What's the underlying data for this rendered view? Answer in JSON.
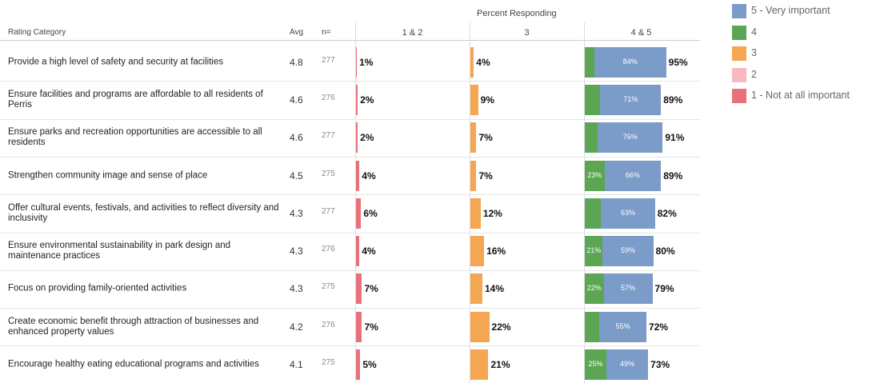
{
  "chart_data": {
    "type": "survey-table",
    "title": "Percent Responding",
    "columns": [
      "Rating Category",
      "Avg",
      "n="
    ],
    "categories": [
      "Provide a high level of safety and security at facilities",
      "Ensure facilities and programs are affordable to all residents of Perris",
      "Ensure parks and recreation opportunities are accessible to all residents",
      "Strengthen community image and sense of place",
      "Offer cultural events, festivals, and activities to reflect diversity and inclusivity",
      "Ensure environmental sustainability in park design and maintenance practices",
      "Focus on providing family-oriented activities",
      "Create economic benefit through attraction of businesses and enhanced property values",
      "Encourage healthy eating educational programs and activities"
    ],
    "avg": [
      4.8,
      4.6,
      4.6,
      4.5,
      4.3,
      4.3,
      4.3,
      4.2,
      4.1
    ],
    "n": [
      277,
      276,
      277,
      275,
      277,
      276,
      275,
      276,
      275
    ],
    "panels": [
      {
        "name": "1 & 2",
        "color": "#e8717b",
        "values": [
          1,
          2,
          2,
          4,
          6,
          4,
          7,
          7,
          5
        ],
        "value_labels": [
          "1%",
          "2%",
          "2%",
          "4%",
          "6%",
          "4%",
          "7%",
          "7%",
          "5%"
        ]
      },
      {
        "name": "3",
        "color": "#f4a652",
        "values": [
          4,
          9,
          7,
          7,
          12,
          16,
          14,
          22,
          21
        ],
        "value_labels": [
          "4%",
          "9%",
          "7%",
          "7%",
          "12%",
          "16%",
          "14%",
          "22%",
          "21%"
        ]
      },
      {
        "name": "4 & 5",
        "values": [
          95,
          89,
          91,
          89,
          82,
          80,
          79,
          72,
          73
        ],
        "value_labels": [
          "95%",
          "89%",
          "91%",
          "89%",
          "82%",
          "80%",
          "79%",
          "72%",
          "73%"
        ],
        "segments": [
          {
            "color": "#5ba553",
            "values": [
              11,
              18,
              15,
              23,
              19,
              21,
              22,
              17,
              25
            ],
            "value_labels": [
              null,
              null,
              null,
              "23%",
              null,
              "21%",
              "22%",
              null,
              "25%"
            ]
          },
          {
            "color": "#7b9bc8",
            "values": [
              84,
              71,
              76,
              66,
              63,
              59,
              57,
              55,
              49
            ],
            "value_labels": [
              "84%",
              "71%",
              "76%",
              "66%",
              "63%",
              "59%",
              "57%",
              "55%",
              "49%"
            ]
          }
        ]
      }
    ],
    "legend": [
      {
        "name": "5 - Very important",
        "color": "#7b9bc8"
      },
      {
        "name": "4",
        "color": "#5ba553"
      },
      {
        "name": "3",
        "color": "#f4a652"
      },
      {
        "name": "2",
        "color": "#f6b9c1"
      },
      {
        "name": "1 - Not at all important",
        "color": "#e8717b"
      }
    ]
  }
}
